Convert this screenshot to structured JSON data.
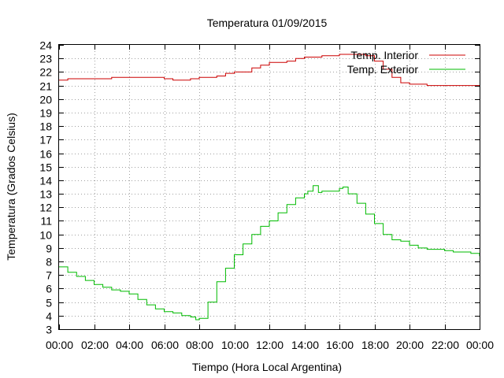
{
  "chart_data": {
    "type": "line",
    "title": "Temperatura 01/09/2015",
    "xlabel": "Tiempo (Hora Local Argentina)",
    "ylabel": "Temperatura (Grados Celsius)",
    "xlim": [
      0,
      24
    ],
    "ylim": [
      3,
      24
    ],
    "grid": true,
    "legend_position": "top-right",
    "x_ticks": [
      0,
      2,
      4,
      6,
      8,
      10,
      12,
      14,
      16,
      18,
      20,
      22,
      24
    ],
    "x_tick_labels": [
      "00:00",
      "02:00",
      "04:00",
      "06:00",
      "08:00",
      "10:00",
      "12:00",
      "14:00",
      "16:00",
      "18:00",
      "20:00",
      "22:00",
      "00:00"
    ],
    "y_ticks": [
      3,
      4,
      5,
      6,
      7,
      8,
      9,
      10,
      11,
      12,
      13,
      14,
      15,
      16,
      17,
      18,
      19,
      20,
      21,
      22,
      23,
      24
    ],
    "series": [
      {
        "name": "Temp. Interior",
        "color": "#cc0000",
        "x": [
          0,
          0.5,
          1,
          2,
          3,
          3.5,
          4,
          4.5,
          5,
          6,
          6.5,
          7,
          7.5,
          8,
          9,
          9.5,
          10,
          11,
          11.5,
          12,
          13,
          13.5,
          14,
          15,
          16,
          16.5,
          17,
          17.5,
          18,
          18.5,
          19,
          19.5,
          20,
          21,
          22,
          23,
          24
        ],
        "y": [
          21.4,
          21.5,
          21.5,
          21.5,
          21.6,
          21.6,
          21.6,
          21.6,
          21.6,
          21.5,
          21.4,
          21.4,
          21.5,
          21.6,
          21.7,
          21.9,
          22.0,
          22.3,
          22.5,
          22.7,
          22.8,
          23.0,
          23.1,
          23.2,
          23.3,
          23.3,
          23.3,
          23.2,
          22.8,
          22.2,
          21.6,
          21.2,
          21.1,
          21.0,
          21.0,
          21.0,
          21.0
        ]
      },
      {
        "name": "Temp. Exterior",
        "color": "#00bb00",
        "x": [
          0,
          0.5,
          1,
          1.5,
          2,
          2.5,
          3,
          3.5,
          4,
          4.5,
          5,
          5.5,
          6,
          6.5,
          7,
          7.5,
          7.8,
          8,
          8.5,
          9,
          9.5,
          10,
          10.5,
          11,
          11.5,
          12,
          12.5,
          13,
          13.5,
          14,
          14.2,
          14.5,
          14.8,
          15,
          15.5,
          16,
          16.2,
          16.5,
          17,
          17.5,
          18,
          18.5,
          19,
          19.5,
          20,
          20.5,
          21,
          21.5,
          22,
          22.5,
          23,
          23.5,
          24
        ],
        "y": [
          7.6,
          7.2,
          6.9,
          6.6,
          6.3,
          6.1,
          5.9,
          5.8,
          5.6,
          5.2,
          4.8,
          4.5,
          4.3,
          4.2,
          4.0,
          3.9,
          3.7,
          3.8,
          5.0,
          6.5,
          7.5,
          8.5,
          9.3,
          10.0,
          10.6,
          11.0,
          11.6,
          12.2,
          12.7,
          13.0,
          13.2,
          13.6,
          13.1,
          13.2,
          13.2,
          13.4,
          13.5,
          13.0,
          12.3,
          11.5,
          10.8,
          10.0,
          9.6,
          9.5,
          9.2,
          9.0,
          8.9,
          8.9,
          8.8,
          8.7,
          8.7,
          8.6,
          8.4
        ]
      }
    ]
  }
}
